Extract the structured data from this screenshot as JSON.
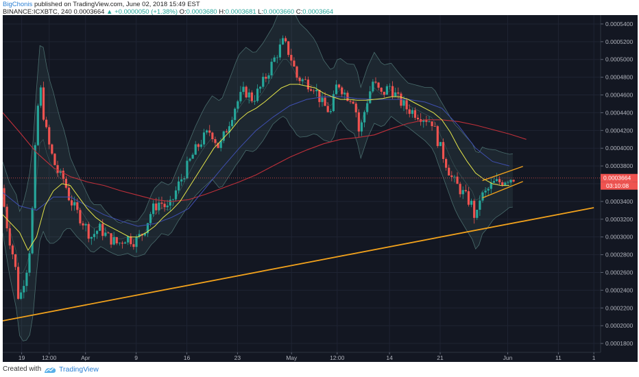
{
  "header": {
    "author": "BigChonis",
    "published_text": "published on TradingView.com, June 02, 2018 15:49 EST",
    "symbol": "BINANCE:ICXBTC, 240",
    "last": "0.0003664",
    "change_arrow": "▲",
    "change": "+0.0000050 (+1.38%)",
    "o_label": "O:",
    "o_value": "0.0003680",
    "h_label": "H:",
    "h_value": "0.0003681",
    "l_label": "L:",
    "l_value": "0.0003660",
    "c_label": "C:",
    "c_value": "0.0003664"
  },
  "footer": {
    "created_with": "Created with",
    "brand": "TradingView"
  },
  "colors": {
    "background": "#131722",
    "bull": "#26a69a",
    "bear": "#ef5350",
    "ma_yellow": "#e6e64a",
    "ma_red": "#c0303a",
    "ma_blue": "#3f4fb0",
    "bands": "#5f8f8a",
    "trendline": "#f2a21c",
    "price_label_bg": "#ef5350"
  },
  "chart_data": {
    "type": "candlestick",
    "symbol": "ICXBTC",
    "exchange": "BINANCE",
    "interval": "240",
    "ylim": [
      0.00017,
      0.00055
    ],
    "y_ticks": [
      "0.0001800",
      "0.0002000",
      "0.0002200",
      "0.0002400",
      "0.0002600",
      "0.0002800",
      "0.0003000",
      "0.0003200",
      "0.0003400",
      "0.0003600",
      "0.0003800",
      "0.0004000",
      "0.0004200",
      "0.0004400",
      "0.0004600",
      "0.0004800",
      "0.0005000",
      "0.0005200",
      "0.0005400"
    ],
    "x_ticks": [
      {
        "label": "19",
        "t": 0.12
      },
      {
        "label": "12:00",
        "t": 1.75
      },
      {
        "label": "Apr",
        "t": 3.9
      },
      {
        "label": "9",
        "t": 6.9
      },
      {
        "label": "16",
        "t": 9.9
      },
      {
        "label": "23",
        "t": 12.9
      },
      {
        "label": "May",
        "t": 16.1
      },
      {
        "label": "12:00",
        "t": 18.8
      },
      {
        "label": "14",
        "t": 21.9
      },
      {
        "label": "21",
        "t": 24.9
      },
      {
        "label": "Jun",
        "t": 28.9
      },
      {
        "label": "11",
        "t": 31.9
      },
      {
        "label": "1",
        "t": 34.0
      }
    ],
    "price_path": [
      [
        -1.0,
        0.000355
      ],
      [
        -0.6,
        0.000305
      ],
      [
        -0.2,
        0.00027
      ],
      [
        0.05,
        0.000225
      ],
      [
        0.2,
        0.00024
      ],
      [
        0.5,
        0.000265
      ],
      [
        0.7,
        0.00029
      ],
      [
        0.9,
        0.00035
      ],
      [
        1.05,
        0.00042
      ],
      [
        1.2,
        0.000455
      ],
      [
        1.3,
        0.00047
      ],
      [
        1.55,
        0.00043
      ],
      [
        1.8,
        0.000405
      ],
      [
        2.1,
        0.000385
      ],
      [
        2.4,
        0.00037
      ],
      [
        2.7,
        0.000365
      ],
      [
        3.0,
        0.000345
      ],
      [
        3.4,
        0.00033
      ],
      [
        3.9,
        0.000315
      ],
      [
        4.3,
        0.0003
      ],
      [
        4.8,
        0.00031
      ],
      [
        5.3,
        0.0003
      ],
      [
        5.9,
        0.000292
      ],
      [
        6.4,
        0.0003
      ],
      [
        6.9,
        0.000295
      ],
      [
        7.4,
        0.000305
      ],
      [
        7.9,
        0.00033
      ],
      [
        8.4,
        0.00034
      ],
      [
        8.9,
        0.00033
      ],
      [
        9.4,
        0.000355
      ],
      [
        9.9,
        0.000375
      ],
      [
        10.4,
        0.000395
      ],
      [
        10.9,
        0.00041
      ],
      [
        11.4,
        0.00042
      ],
      [
        11.9,
        0.0004
      ],
      [
        12.4,
        0.000425
      ],
      [
        12.9,
        0.00045
      ],
      [
        13.4,
        0.000465
      ],
      [
        13.9,
        0.000455
      ],
      [
        14.4,
        0.00047
      ],
      [
        14.9,
        0.00049
      ],
      [
        15.4,
        0.00051
      ],
      [
        15.7,
        0.00052
      ],
      [
        16.1,
        0.000505
      ],
      [
        16.5,
        0.00048
      ],
      [
        17.0,
        0.000475
      ],
      [
        17.5,
        0.00047
      ],
      [
        18.0,
        0.00045
      ],
      [
        18.5,
        0.00044
      ],
      [
        18.9,
        0.000475
      ],
      [
        19.4,
        0.00046
      ],
      [
        19.9,
        0.000455
      ],
      [
        20.2,
        0.000415
      ],
      [
        20.6,
        0.00045
      ],
      [
        21.0,
        0.000475
      ],
      [
        21.5,
        0.00046
      ],
      [
        22.0,
        0.00047
      ],
      [
        22.5,
        0.000455
      ],
      [
        23.0,
        0.000445
      ],
      [
        23.5,
        0.00044
      ],
      [
        24.0,
        0.000435
      ],
      [
        24.5,
        0.00043
      ],
      [
        24.9,
        0.000405
      ],
      [
        25.3,
        0.000385
      ],
      [
        25.7,
        0.000365
      ],
      [
        26.1,
        0.000355
      ],
      [
        26.5,
        0.000345
      ],
      [
        26.9,
        0.000335
      ],
      [
        27.1,
        0.000315
      ],
      [
        27.3,
        0.000343
      ],
      [
        27.7,
        0.00035
      ],
      [
        28.1,
        0.00036
      ],
      [
        28.5,
        0.000362
      ],
      [
        29.0,
        0.000366
      ],
      [
        29.3,
        0.000367
      ]
    ],
    "candles_per_day": 6,
    "ma_yellow_path": [
      [
        -1.0,
        0.000325
      ],
      [
        0,
        0.000305
      ],
      [
        0.5,
        0.000285
      ],
      [
        1.0,
        0.0003
      ],
      [
        1.5,
        0.000335
      ],
      [
        2.0,
        0.000352
      ],
      [
        2.5,
        0.00036
      ],
      [
        3.0,
        0.000358
      ],
      [
        3.5,
        0.000345
      ],
      [
        4.0,
        0.000332
      ],
      [
        4.5,
        0.000322
      ],
      [
        5.0,
        0.000315
      ],
      [
        5.5,
        0.00031
      ],
      [
        6.0,
        0.000305
      ],
      [
        6.5,
        0.0003
      ],
      [
        7.0,
        0.0003
      ],
      [
        7.5,
        0.000305
      ],
      [
        8.0,
        0.000312
      ],
      [
        8.5,
        0.000322
      ],
      [
        9.0,
        0.00033
      ],
      [
        9.5,
        0.00034
      ],
      [
        10.0,
        0.000355
      ],
      [
        10.5,
        0.00037
      ],
      [
        11.0,
        0.000385
      ],
      [
        11.5,
        0.0004
      ],
      [
        12.0,
        0.00041
      ],
      [
        12.5,
        0.00042
      ],
      [
        13.0,
        0.000432
      ],
      [
        13.5,
        0.00044
      ],
      [
        14.0,
        0.000445
      ],
      [
        14.5,
        0.000452
      ],
      [
        15.0,
        0.00046
      ],
      [
        15.5,
        0.000468
      ],
      [
        16.0,
        0.000472
      ],
      [
        16.5,
        0.000472
      ],
      [
        17.0,
        0.00047
      ],
      [
        17.5,
        0.000468
      ],
      [
        18.0,
        0.000462
      ],
      [
        18.5,
        0.000458
      ],
      [
        19.0,
        0.000455
      ],
      [
        19.5,
        0.000455
      ],
      [
        20.0,
        0.000454
      ],
      [
        20.5,
        0.000454
      ],
      [
        21.0,
        0.000455
      ],
      [
        21.5,
        0.000456
      ],
      [
        22.0,
        0.000458
      ],
      [
        22.5,
        0.000458
      ],
      [
        23.0,
        0.000455
      ],
      [
        23.5,
        0.00045
      ],
      [
        24.0,
        0.000445
      ],
      [
        24.5,
        0.00044
      ],
      [
        25.0,
        0.000432
      ],
      [
        25.5,
        0.000418
      ],
      [
        26.0,
        0.0004
      ],
      [
        26.5,
        0.000385
      ],
      [
        27.0,
        0.000372
      ],
      [
        27.5,
        0.000365
      ],
      [
        28.0,
        0.00036
      ],
      [
        28.5,
        0.000358
      ],
      [
        29.0,
        0.000358
      ]
    ],
    "ma_red_path": [
      [
        -1.0,
        0.00044
      ],
      [
        0,
        0.000418
      ],
      [
        1,
        0.000395
      ],
      [
        2,
        0.000378
      ],
      [
        3,
        0.000368
      ],
      [
        4,
        0.000362
      ],
      [
        5,
        0.000358
      ],
      [
        6,
        0.000352
      ],
      [
        7,
        0.000347
      ],
      [
        8,
        0.000342
      ],
      [
        9,
        0.00034
      ],
      [
        10,
        0.000342
      ],
      [
        11,
        0.000348
      ],
      [
        12,
        0.000355
      ],
      [
        13,
        0.000362
      ],
      [
        14,
        0.00037
      ],
      [
        15,
        0.00038
      ],
      [
        16,
        0.00039
      ],
      [
        17,
        0.000398
      ],
      [
        18,
        0.000405
      ],
      [
        19,
        0.00041
      ],
      [
        20,
        0.000412
      ],
      [
        21,
        0.000415
      ],
      [
        22,
        0.000422
      ],
      [
        23,
        0.000428
      ],
      [
        24,
        0.000432
      ],
      [
        25,
        0.000432
      ],
      [
        26,
        0.00043
      ],
      [
        27,
        0.000426
      ],
      [
        28,
        0.000421
      ],
      [
        29,
        0.000416
      ],
      [
        30,
        0.00041
      ]
    ],
    "ma_blue_path": [
      [
        -1.0,
        0.00035
      ],
      [
        0,
        0.000335
      ],
      [
        1,
        0.00033
      ],
      [
        2,
        0.000345
      ],
      [
        3,
        0.000345
      ],
      [
        4,
        0.000335
      ],
      [
        5,
        0.000325
      ],
      [
        6,
        0.000318
      ],
      [
        7,
        0.000312
      ],
      [
        8,
        0.000315
      ],
      [
        9,
        0.000322
      ],
      [
        10,
        0.000332
      ],
      [
        11,
        0.000355
      ],
      [
        12,
        0.000378
      ],
      [
        13,
        0.0004
      ],
      [
        14,
        0.00042
      ],
      [
        15,
        0.000435
      ],
      [
        16,
        0.000448
      ],
      [
        17,
        0.000455
      ],
      [
        18,
        0.000458
      ],
      [
        19,
        0.000458
      ],
      [
        20,
        0.000456
      ],
      [
        21,
        0.000455
      ],
      [
        22,
        0.000455
      ],
      [
        23,
        0.000455
      ],
      [
        24,
        0.000452
      ],
      [
        25,
        0.000445
      ],
      [
        26,
        0.000425
      ],
      [
        27,
        0.0004
      ],
      [
        28,
        0.000385
      ],
      [
        29,
        0.00038
      ]
    ],
    "band_width": [
      [
        -1.0,
        4e-05
      ],
      [
        0,
        7e-05
      ],
      [
        0.7,
        9.5e-05
      ],
      [
        1.2,
        0.00011
      ],
      [
        2.0,
        8.5e-05
      ],
      [
        3.0,
        4e-05
      ],
      [
        4.0,
        3e-05
      ],
      [
        5.0,
        2.2e-05
      ],
      [
        6.0,
        1.8e-05
      ],
      [
        7.0,
        2e-05
      ],
      [
        8.0,
        3e-05
      ],
      [
        9.0,
        2.8e-05
      ],
      [
        10.0,
        3.5e-05
      ],
      [
        11.0,
        4.5e-05
      ],
      [
        12.0,
        5e-05
      ],
      [
        13.0,
        6e-05
      ],
      [
        14.0,
        5.5e-05
      ],
      [
        15.0,
        5.5e-05
      ],
      [
        16.0,
        7e-05
      ],
      [
        17.0,
        6e-05
      ],
      [
        18.0,
        4.5e-05
      ],
      [
        19.0,
        3.5e-05
      ],
      [
        20.0,
        4e-05
      ],
      [
        21.0,
        4e-05
      ],
      [
        22.0,
        3e-05
      ],
      [
        23.0,
        2.5e-05
      ],
      [
        24.0,
        3e-05
      ],
      [
        25.0,
        4e-05
      ],
      [
        26.0,
        5e-05
      ],
      [
        27.0,
        5.5e-05
      ],
      [
        28.0,
        4e-05
      ],
      [
        29.0,
        3e-05
      ]
    ],
    "trendlines": [
      {
        "name": "main support",
        "points": [
          [
            -1.0,
            0.0002055
          ],
          [
            34.0,
            0.000333
          ]
        ]
      },
      {
        "name": "channel upper",
        "points": [
          [
            27.4,
            0.0003635
          ],
          [
            29.8,
            0.0003795
          ]
        ]
      },
      {
        "name": "channel lower",
        "points": [
          [
            27.4,
            0.000344
          ],
          [
            29.8,
            0.0003625
          ]
        ]
      }
    ],
    "last_price": {
      "value": 0.0003664,
      "label": "0.0003664",
      "countdown": "03:10:08"
    },
    "grid": true
  }
}
